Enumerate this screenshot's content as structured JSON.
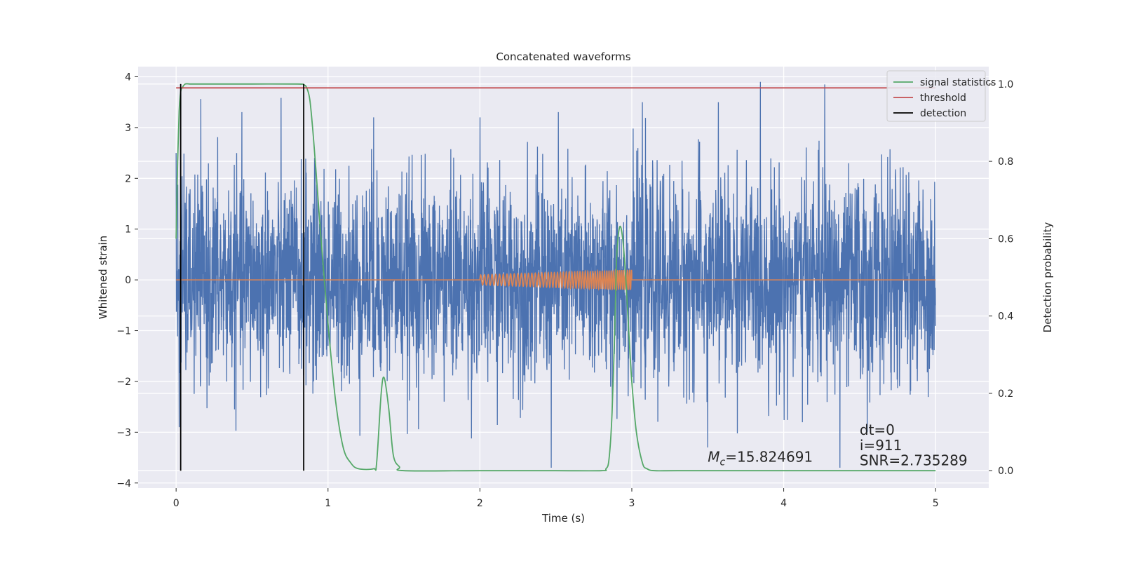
{
  "chart_data": {
    "type": "line",
    "title": "Concatenated waveforms",
    "xlabel": "Time (s)",
    "ylabel": "Whitened strain",
    "ylabel2": "Detection probability",
    "xlim": [
      -0.25,
      5.35
    ],
    "ylim": [
      -4.1,
      4.2
    ],
    "ylim2": [
      -0.045,
      1.045
    ],
    "xticks": [
      0,
      1,
      2,
      3,
      4,
      5
    ],
    "xtick_labels": [
      "0",
      "1",
      "2",
      "3",
      "4",
      "5"
    ],
    "yticks": [
      4,
      3,
      2,
      1,
      0,
      -1,
      -2,
      -3,
      -4
    ],
    "ytick_labels": [
      "4",
      "3",
      "2",
      "1",
      "0",
      "−1",
      "−2",
      "−3",
      "−4"
    ],
    "y2ticks": [
      1.0,
      0.8,
      0.6,
      0.4,
      0.2,
      0.0
    ],
    "y2tick_labels": [
      "1.0",
      "0.8",
      "0.6",
      "0.4",
      "0.2",
      "0.0"
    ],
    "grid": true,
    "legend_position": "top-right",
    "colors": {
      "background": "#EAEAF2",
      "grid": "#FFFFFF",
      "strain": "#4C72B0",
      "template": "#DD8452",
      "signal": "#55A868",
      "threshold": "#C44E52",
      "detection": "#000000"
    },
    "series": [
      {
        "name": "",
        "kind": "noise",
        "axis": "left",
        "x_range": [
          0,
          5
        ],
        "amplitude_std": 1.0,
        "notable_spikes": [
          [
            0.0,
            2.5
          ],
          [
            0.02,
            -2.9
          ],
          [
            1.3,
            3.2
          ],
          [
            2.0,
            3.2
          ],
          [
            2.47,
            -3.7
          ],
          [
            3.07,
            3.5
          ],
          [
            3.5,
            -3.3
          ],
          [
            3.57,
            3.5
          ],
          [
            4.27,
            3.85
          ],
          [
            4.37,
            -3.7
          ],
          [
            4.55,
            -3.0
          ]
        ]
      },
      {
        "name": "",
        "kind": "chirp",
        "axis": "left",
        "x_range": [
          2.0,
          3.0
        ],
        "amplitude_start": 0.1,
        "amplitude_end": 0.2,
        "frequency_start_hz": 40,
        "frequency_end_hz": 80
      },
      {
        "name": "signal statistics",
        "axis": "right",
        "x": [
          0.0,
          0.01,
          0.02,
          0.03,
          0.04,
          0.06,
          0.1,
          0.2,
          0.5,
          0.8,
          0.84,
          0.86,
          0.88,
          0.9,
          0.92,
          0.95,
          1.0,
          1.05,
          1.1,
          1.15,
          1.2,
          1.3,
          1.32,
          1.35,
          1.37,
          1.4,
          1.43,
          1.47,
          1.5,
          2.0,
          2.5,
          2.8,
          2.83,
          2.85,
          2.87,
          2.89,
          2.9,
          2.92,
          2.94,
          2.96,
          2.98,
          3.0,
          3.03,
          3.07,
          3.1,
          3.15,
          3.3,
          4.0,
          4.5,
          5.0
        ],
        "y": [
          0.6,
          0.8,
          0.93,
          0.98,
          0.99,
          1.0,
          1.0,
          1.0,
          1.0,
          1.0,
          0.998,
          0.99,
          0.96,
          0.88,
          0.78,
          0.62,
          0.38,
          0.18,
          0.06,
          0.02,
          0.005,
          0.005,
          0.02,
          0.2,
          0.24,
          0.16,
          0.04,
          0.01,
          0.0,
          0.0,
          0.0,
          0.0,
          0.005,
          0.03,
          0.15,
          0.4,
          0.55,
          0.63,
          0.6,
          0.5,
          0.36,
          0.23,
          0.1,
          0.02,
          0.005,
          0.0,
          0.0,
          0.0,
          0.0,
          0.0
        ]
      },
      {
        "name": "threshold",
        "axis": "right",
        "x": [
          0.0,
          5.0
        ],
        "y": [
          0.99,
          0.99
        ]
      },
      {
        "name": "detection",
        "axis": "right",
        "segments": [
          {
            "x": 0.03,
            "y0": 0.0,
            "y1": 1.0
          },
          {
            "x": 0.84,
            "y0": 0.0,
            "y1": 1.0
          }
        ]
      }
    ],
    "legend": [
      "signal statistics",
      "threshold",
      "detection"
    ],
    "annotations": [
      {
        "text_html": "<tspan font-style=\"italic\">M</tspan><tspan font-style=\"italic\" font-size=\"14\" dy=\"5\">c</tspan><tspan dy=\"-5\">=15.824691</tspan>",
        "text": "Mc=15.824691",
        "x": 3.5,
        "y": -3.5
      },
      {
        "text": "dt=0",
        "x": 4.5,
        "y": -2.97
      },
      {
        "text": "i=911",
        "x": 4.5,
        "y": -3.27
      },
      {
        "text": "SNR=2.735289",
        "x": 4.5,
        "y": -3.57
      }
    ]
  }
}
